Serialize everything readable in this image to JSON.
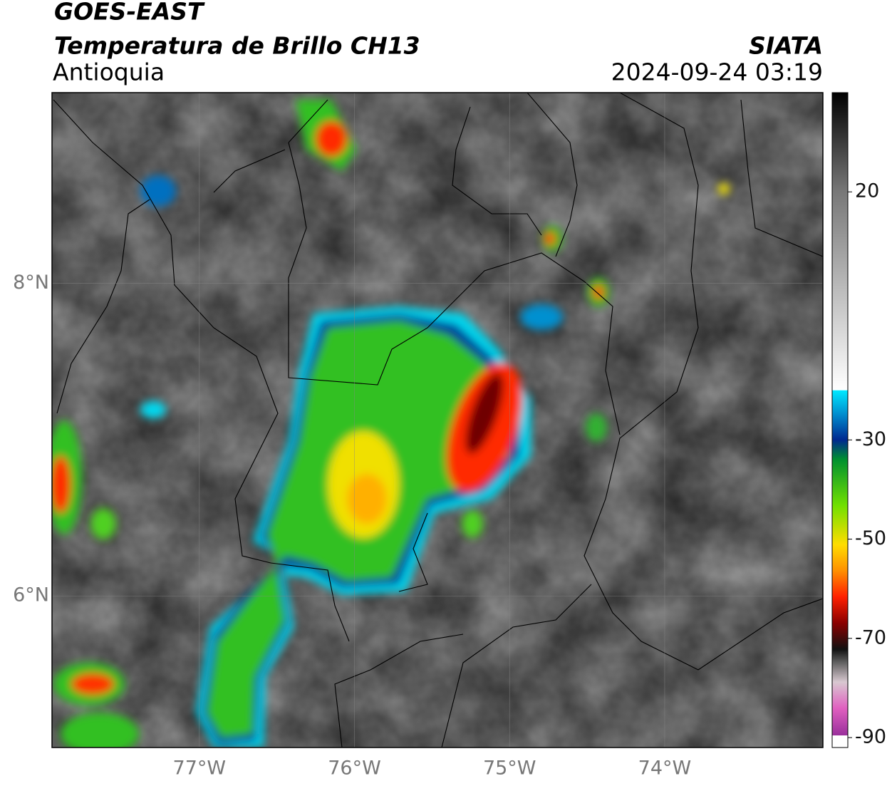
{
  "header": {
    "title": "GOES-EAST",
    "subtitle": "Temperatura de Brillo CH13",
    "region": "Antioquia",
    "source": "SIATA",
    "datetime": "2024-09-24 03:19"
  },
  "map": {
    "lon_range": [
      -77.95,
      -72.98
    ],
    "lat_range": [
      5.03,
      9.22
    ],
    "lon_ticks": [
      {
        "value": -77,
        "label": "77°W"
      },
      {
        "value": -76,
        "label": "76°W"
      },
      {
        "value": -75,
        "label": "75°W"
      },
      {
        "value": -74,
        "label": "74°W"
      }
    ],
    "lat_ticks": [
      {
        "value": 8,
        "label": "8°N"
      },
      {
        "value": 6,
        "label": "6°N"
      }
    ]
  },
  "colorbar": {
    "range": [
      -92,
      40
    ],
    "ticks": [
      20,
      -30,
      -50,
      -70,
      -90
    ]
  }
}
